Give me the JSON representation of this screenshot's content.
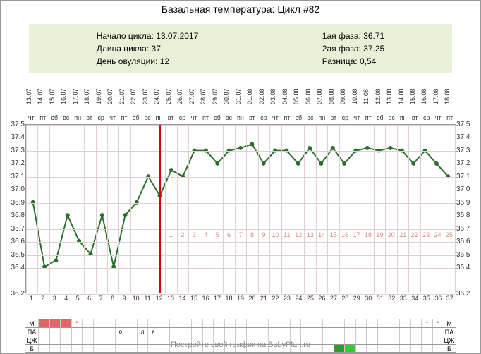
{
  "title": "Базальная температура: Цикл #82",
  "info_left": {
    "start": "Начало цикла: 13.07.2017",
    "length": "Длина цикла: 37",
    "ovulation": "День овуляции: 12"
  },
  "info_right": {
    "phase1": "1ая фаза: 36.71",
    "phase2": "2ая фаза: 37.25",
    "diff": "Разница: 0,54"
  },
  "footer": "Постройте свой график на BabyPlan.ru",
  "ylim": [
    36.2,
    37.5
  ],
  "yticks": [
    36.2,
    36.4,
    36.5,
    36.6,
    36.7,
    36.8,
    36.9,
    37.0,
    37.1,
    37.2,
    37.3,
    37.4,
    37.5
  ],
  "days": 37,
  "ovulation_day": 12,
  "dates": [
    "13.07",
    "14.07",
    "15.07",
    "16.07",
    "17.07",
    "18.07",
    "19.07",
    "20.07",
    "21.07",
    "22.07",
    "23.07",
    "24.07",
    "25.07",
    "26.07",
    "27.07",
    "28.07",
    "29.07",
    "30.07",
    "31.07",
    "01.08",
    "02.08",
    "03.08",
    "04.08",
    "05.08",
    "06.08",
    "07.08",
    "08.08",
    "09.08",
    "10.08",
    "11.08",
    "12.08",
    "13.08",
    "14.08",
    "15.08",
    "16.08",
    "17.08",
    "18.08"
  ],
  "weekdays": [
    "чт",
    "пт",
    "сб",
    "вс",
    "пн",
    "вт",
    "ср",
    "чт",
    "пт",
    "сб",
    "вс",
    "пн",
    "вт",
    "ср",
    "чт",
    "пт",
    "сб",
    "вс",
    "пн",
    "вт",
    "ср",
    "чт",
    "пт",
    "сб",
    "вс",
    "пн",
    "вт",
    "ср",
    "чт",
    "пт",
    "сб",
    "вс",
    "пн",
    "вт",
    "ср",
    "чт",
    "пт"
  ],
  "temps": [
    36.9,
    36.4,
    36.45,
    36.8,
    36.6,
    36.5,
    36.8,
    36.4,
    36.8,
    36.9,
    37.1,
    36.95,
    37.15,
    37.1,
    37.3,
    37.3,
    37.2,
    37.3,
    37.32,
    37.35,
    37.2,
    37.3,
    37.3,
    37.2,
    37.32,
    37.2,
    37.32,
    37.2,
    37.3,
    37.32,
    37.3,
    37.32,
    37.3,
    37.2,
    37.3,
    37.2,
    37.1
  ],
  "track_labels": [
    "М",
    "ПА",
    "ЦЖ",
    "Б"
  ],
  "m_track": {
    "red": [
      1,
      2,
      3
    ],
    "star": [
      4,
      36,
      37
    ]
  },
  "pa_track": {
    "marks": {
      "8": "о",
      "10": "л",
      "11": "я"
    }
  },
  "b_track": {
    "green": [
      29
    ],
    "dgreen": [
      28
    ]
  },
  "red_day_start": 13,
  "line_color": "#2a6e2a",
  "point_color": "#2a6e2a",
  "ov_color": "#d00000"
}
